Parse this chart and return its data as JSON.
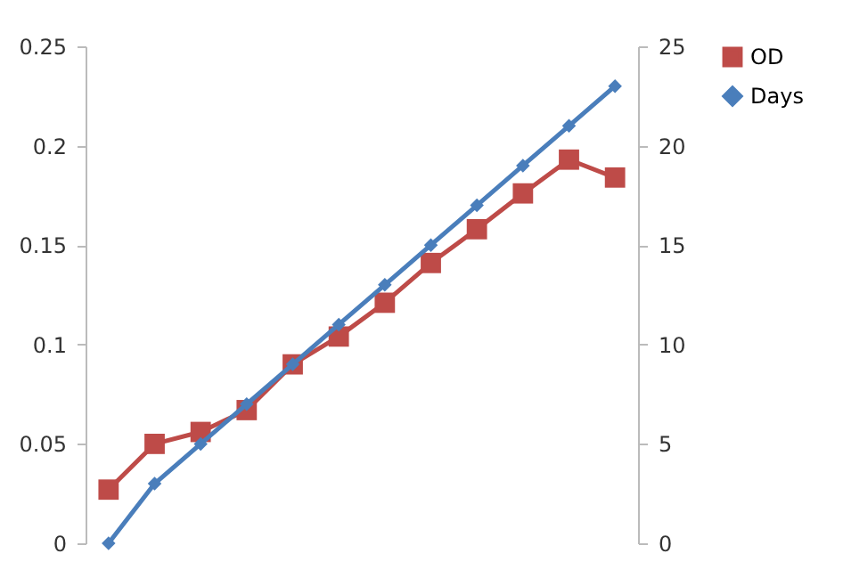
{
  "chart_data": {
    "type": "line",
    "categories": [
      null,
      null,
      null,
      null,
      null,
      null,
      null,
      null,
      null,
      null,
      null,
      null
    ],
    "series": [
      {
        "name": "OD",
        "color": "#be4b48",
        "marker": "square",
        "values": [
          0.027,
          0.05,
          0.056,
          0.067,
          0.09,
          0.104,
          0.121,
          0.141,
          0.158,
          0.176,
          0.193,
          0.184
        ]
      },
      {
        "name": "Days",
        "color": "#4a7ebb",
        "marker": "diamond",
        "axis": "y2",
        "values": [
          0,
          3,
          5,
          7,
          9,
          11,
          13,
          15,
          17,
          19,
          21,
          23
        ]
      }
    ],
    "ylim": [
      0,
      0.25
    ],
    "yticks": [
      0,
      0.05,
      0.1,
      0.15,
      0.2,
      0.25
    ],
    "y2lim": [
      0,
      25
    ],
    "y2ticks": [
      0,
      5,
      10,
      15,
      20,
      25
    ],
    "grid": false,
    "legend": "right",
    "line_style": "solid"
  }
}
